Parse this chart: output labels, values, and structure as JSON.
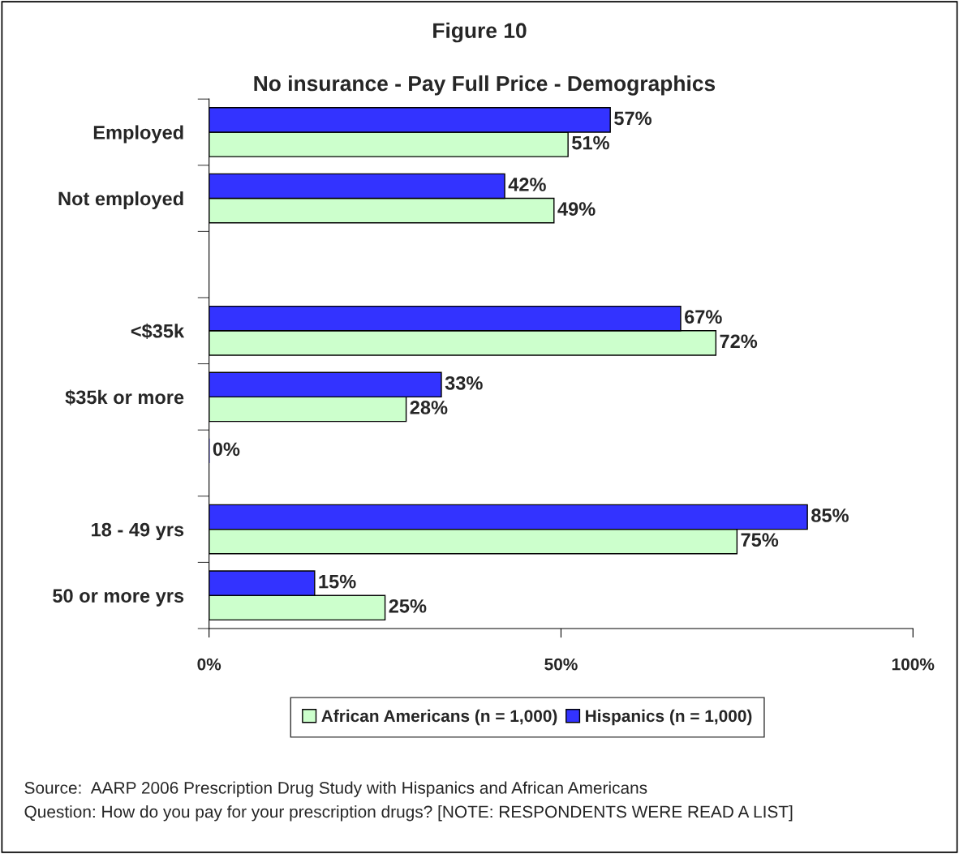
{
  "chart_data": {
    "type": "bar",
    "orientation": "horizontal",
    "title": "Figure 10",
    "subtitle": "No insurance - Pay Full Price - Demographics",
    "categories": [
      "Employed",
      "Not employed",
      null,
      "<$35k",
      "$35k or more",
      null,
      "18 - 49 yrs",
      "50 or more yrs"
    ],
    "series": [
      {
        "name": "African Americans (n = 1,000)",
        "color": "#ccffcc",
        "values": [
          51,
          49,
          null,
          72,
          28,
          null,
          75,
          25
        ],
        "value_labels": [
          "51%",
          "49%",
          null,
          "72%",
          "28%",
          null,
          "75%",
          "25%"
        ]
      },
      {
        "name": "Hispanics (n = 1,000)",
        "color": "#3333ff",
        "values": [
          57,
          42,
          null,
          67,
          33,
          0,
          85,
          15
        ],
        "value_labels": [
          "57%",
          "42%",
          null,
          "67%",
          "33%",
          "0%",
          "85%",
          "15%"
        ]
      }
    ],
    "xlim": [
      0,
      100
    ],
    "xticks": [
      {
        "value": 0,
        "label": "0%"
      },
      {
        "value": 50,
        "label": "50%"
      },
      {
        "value": 100,
        "label": "100%"
      }
    ],
    "grid": false,
    "legend": "bottom",
    "annotations": [
      "Source:  AARP 2006 Prescription Drug Study with Hispanics and African Americans",
      "Question: How do you pay for your prescription drugs? [NOTE: RESPONDENTS WERE READ A LIST]"
    ]
  }
}
